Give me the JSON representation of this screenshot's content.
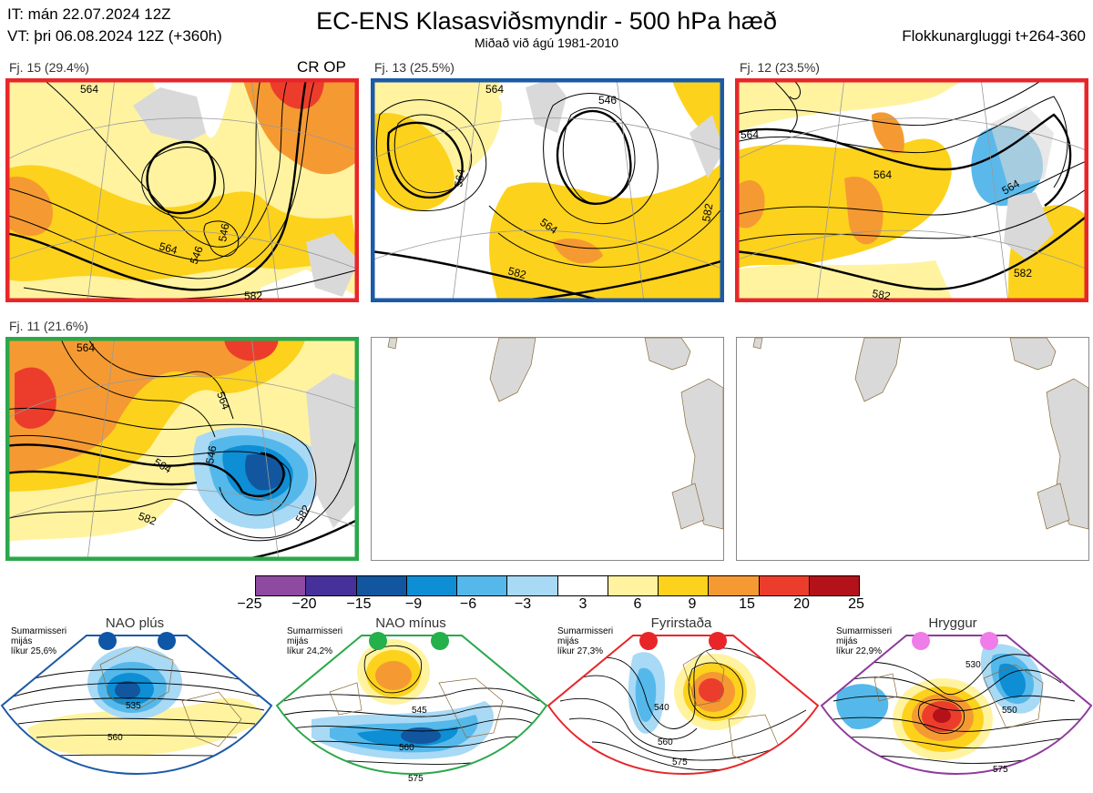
{
  "header": {
    "init_time": "IT: mán 22.07.2024 12Z",
    "valid_time": "VT: þri 06.08.2024 12Z  (+360h)",
    "title": "EC-ENS Klasasviðsmyndir - 500 hPa hæð",
    "subtitle": "Miðað við ágú 1981-2010",
    "window": "Flokkunargluggi t+264-360"
  },
  "clusters": [
    {
      "label": "Fj. 15 (29.4%)",
      "tag": "CR OP",
      "border": "#e8262a",
      "contours": [
        "564",
        "546",
        "546",
        "564",
        "582"
      ]
    },
    {
      "label": "Fj. 13 (25.5%)",
      "tag": "",
      "border": "#1b5aa6",
      "contours": [
        "564",
        "546",
        "564",
        "564",
        "582",
        "582"
      ]
    },
    {
      "label": "Fj. 12 (23.5%)",
      "tag": "",
      "border": "#e8262a",
      "contours": [
        "564",
        "564",
        "564",
        "582",
        "582"
      ]
    },
    {
      "label": "Fj. 11 (21.6%)",
      "tag": "",
      "border": "#2aa84a",
      "contours": [
        "564",
        "564",
        "546",
        "564",
        "582",
        "582"
      ]
    }
  ],
  "colorbar": {
    "ticks": [
      "−25",
      "−20",
      "−15",
      "−9",
      "−6",
      "−3",
      "3",
      "6",
      "9",
      "15",
      "20",
      "25"
    ],
    "colors": [
      "#8e4aa0",
      "#46309a",
      "#12569f",
      "#0e8ed4",
      "#55b8ea",
      "#a8d9f5",
      "#ffffff",
      "#fff3a0",
      "#fdd21c",
      "#f59a32",
      "#ec3d2c",
      "#b3121a"
    ]
  },
  "regimes": [
    {
      "name": "NAO plús",
      "info": [
        "Sumarmisseri",
        "mijás",
        "líkur 25,6%"
      ],
      "border": "#1b5aa6",
      "dot": "#0f57a6",
      "contours": [
        "535",
        "560"
      ]
    },
    {
      "name": "NAO mínus",
      "info": [
        "Sumarmisseri",
        "mijás",
        "líkur 24,2%"
      ],
      "border": "#2aa84a",
      "dot": "#24b04a",
      "contours": [
        "545",
        "560",
        "575"
      ]
    },
    {
      "name": "Fyrirstaða",
      "info": [
        "Sumarmisseri",
        "mijás",
        "líkur 27,3%"
      ],
      "border": "#e8262a",
      "dot": "#e8262a",
      "contours": [
        "540",
        "560",
        "575"
      ]
    },
    {
      "name": "Hryggur",
      "info": [
        "Sumarmisseri",
        "mijás",
        "líkur 22,9%"
      ],
      "border": "#8e3a9c",
      "dot": "#ef7ce8",
      "contours": [
        "530",
        "550",
        "575"
      ]
    }
  ]
}
